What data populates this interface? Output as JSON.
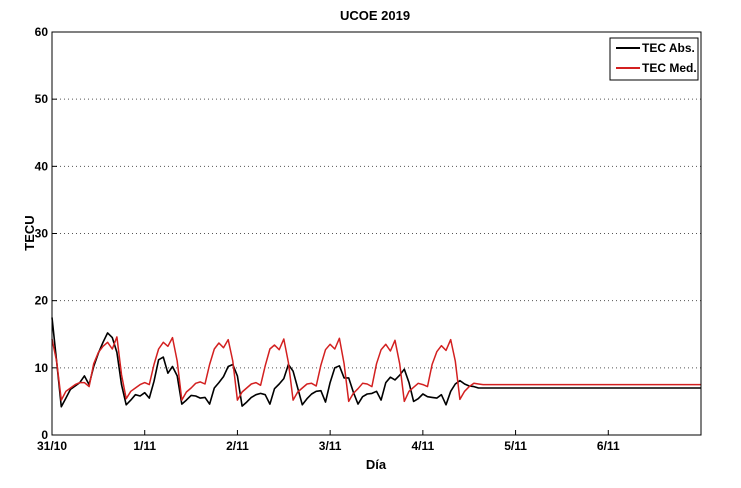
{
  "chart_data": {
    "type": "line",
    "title": "UCOE 2019",
    "xlabel": "Día",
    "ylabel": "TECU",
    "ylim": [
      0,
      60
    ],
    "yticks": [
      0,
      10,
      20,
      30,
      40,
      50,
      60
    ],
    "xlim": [
      0,
      7
    ],
    "xtick_labels": [
      "31/10",
      "1/11",
      "2/11",
      "3/11",
      "4/11",
      "5/11",
      "6/11"
    ],
    "grid": "horizontal dotted",
    "legend_position": "top-right",
    "series": [
      {
        "name": "TEC Abs.",
        "color": "#000000",
        "x": [
          0,
          0.05,
          0.1,
          0.15,
          0.2,
          0.25,
          0.3,
          0.35,
          0.4,
          0.45,
          0.5,
          0.55,
          0.6,
          0.65,
          0.7,
          0.75,
          0.8,
          0.85,
          0.9,
          0.95,
          1.0,
          1.05,
          1.1,
          1.15,
          1.2,
          1.25,
          1.3,
          1.35,
          1.4,
          1.45,
          1.5,
          1.55,
          1.6,
          1.65,
          1.7,
          1.75,
          1.8,
          1.85,
          1.9,
          1.95,
          2.0,
          2.05,
          2.1,
          2.15,
          2.2,
          2.25,
          2.3,
          2.35,
          2.4,
          2.45,
          2.5,
          2.55,
          2.6,
          2.65,
          2.7,
          2.75,
          2.8,
          2.85,
          2.9,
          2.95,
          3.0,
          3.05,
          3.1,
          3.15,
          3.2,
          3.25,
          3.3,
          3.35,
          3.4,
          3.45,
          3.5,
          3.55,
          3.6,
          3.65,
          3.7,
          3.75,
          3.8,
          3.85,
          3.9,
          3.95,
          4.0,
          4.05,
          4.1,
          4.15,
          4.2,
          4.25,
          4.3,
          4.35,
          4.4,
          4.45,
          4.5,
          4.55,
          4.6,
          4.65,
          4.7,
          4.75,
          4.8,
          4.85,
          4.9,
          4.95,
          5.0,
          5.05,
          5.1,
          5.15,
          5.2,
          5.25,
          5.3,
          5.35,
          5.4,
          5.45,
          5.5,
          5.55,
          5.6,
          5.65,
          5.7,
          5.75,
          5.8,
          5.85,
          5.9,
          5.95,
          6.0,
          6.05,
          6.1,
          6.15,
          6.2,
          6.25,
          6.3,
          6.35,
          6.4,
          6.45,
          6.5,
          6.55,
          6.6,
          6.65,
          6.7,
          6.75,
          6.8,
          6.85,
          6.9,
          6.95,
          7.0
        ],
        "values": [
          17.5,
          11.0,
          4.2,
          5.5,
          6.8,
          7.3,
          7.8,
          8.8,
          7.5,
          10.2,
          12.2,
          13.8,
          15.2,
          14.5,
          12.3,
          7.5,
          4.5,
          5.2,
          6.0,
          5.8,
          6.3,
          5.5,
          8.0,
          11.2,
          11.6,
          9.2,
          10.2,
          8.8,
          4.6,
          5.2,
          5.9,
          5.8,
          5.5,
          5.6,
          4.6,
          7.0,
          7.8,
          8.7,
          10.2,
          10.5,
          8.8,
          4.3,
          4.9,
          5.6,
          6.0,
          6.2,
          6.0,
          4.6,
          6.9,
          7.6,
          8.4,
          10.5,
          9.5,
          7.0,
          4.5,
          5.4,
          6.1,
          6.5,
          6.6,
          4.9,
          7.8,
          10.0,
          10.3,
          8.5,
          8.5,
          6.4,
          4.6,
          5.7,
          6.1,
          6.2,
          6.5,
          5.2,
          7.8,
          8.6,
          8.2,
          8.9,
          9.8,
          7.8,
          5.0,
          5.4,
          6.1,
          5.7,
          5.6,
          5.5,
          6.0,
          4.5,
          6.5,
          7.6,
          8.1,
          7.6,
          7.3,
          7.2,
          7.0,
          7.0,
          7.0,
          7.0,
          7.0,
          7.0,
          7.0,
          7.0,
          7.0,
          7.0,
          7.0,
          7.0,
          7.0,
          7.0,
          7.0,
          7.0,
          7.0,
          7.0,
          7.0,
          7.0,
          7.0,
          7.0,
          7.0,
          7.0,
          7.0,
          7.0,
          7.0,
          7.0,
          7.0,
          7.0,
          7.0,
          7.0,
          7.0,
          7.0,
          7.0,
          7.0,
          7.0,
          7.0,
          7.0,
          7.0,
          7.0,
          7.0,
          7.0,
          7.0,
          7.0,
          7.0,
          7.0,
          7.0,
          7.0
        ]
      },
      {
        "name": "TEC Med.",
        "color": "#d32020",
        "x": [
          0,
          0.05,
          0.1,
          0.15,
          0.2,
          0.25,
          0.3,
          0.35,
          0.4,
          0.45,
          0.5,
          0.55,
          0.6,
          0.65,
          0.7,
          0.75,
          0.8,
          0.85,
          0.9,
          0.95,
          1.0,
          1.05,
          1.1,
          1.15,
          1.2,
          1.25,
          1.3,
          1.35,
          1.4,
          1.45,
          1.5,
          1.55,
          1.6,
          1.65,
          1.7,
          1.75,
          1.8,
          1.85,
          1.9,
          1.95,
          2.0,
          2.05,
          2.1,
          2.15,
          2.2,
          2.25,
          2.3,
          2.35,
          2.4,
          2.45,
          2.5,
          2.55,
          2.6,
          2.65,
          2.7,
          2.75,
          2.8,
          2.85,
          2.9,
          2.95,
          3.0,
          3.05,
          3.1,
          3.15,
          3.2,
          3.25,
          3.3,
          3.35,
          3.4,
          3.45,
          3.5,
          3.55,
          3.6,
          3.65,
          3.7,
          3.75,
          3.8,
          3.85,
          3.9,
          3.95,
          4.0,
          4.05,
          4.1,
          4.15,
          4.2,
          4.25,
          4.3,
          4.35,
          4.4,
          4.45,
          4.5,
          4.55,
          4.6,
          4.65,
          4.7,
          4.75,
          4.8,
          4.85,
          4.9,
          4.95,
          5.0,
          5.05,
          5.1,
          5.15,
          5.2,
          5.25,
          5.3,
          5.35,
          5.4,
          5.45,
          5.5,
          5.55,
          5.6,
          5.65,
          5.7,
          5.75,
          5.8,
          5.85,
          5.9,
          5.95,
          6.0,
          6.05,
          6.1,
          6.15,
          6.2,
          6.25,
          6.3,
          6.35,
          6.4,
          6.45,
          6.5,
          6.55,
          6.6,
          6.65,
          6.7,
          6.75,
          6.8,
          6.85,
          6.9,
          6.95,
          7.0
        ],
        "values": [
          14.3,
          11.0,
          5.2,
          6.5,
          7.0,
          7.5,
          7.8,
          7.8,
          7.2,
          10.6,
          12.3,
          13.2,
          13.8,
          12.8,
          14.6,
          9.0,
          5.4,
          6.5,
          7.0,
          7.5,
          7.8,
          7.5,
          10.5,
          12.8,
          13.8,
          13.2,
          14.5,
          11.0,
          5.2,
          6.4,
          7.0,
          7.7,
          7.9,
          7.6,
          10.5,
          12.8,
          13.7,
          13.0,
          14.2,
          11.0,
          5.2,
          6.4,
          7.0,
          7.6,
          7.8,
          7.4,
          10.3,
          12.8,
          13.4,
          12.7,
          14.3,
          10.8,
          5.2,
          6.4,
          7.0,
          7.6,
          7.7,
          7.3,
          10.4,
          12.7,
          13.5,
          12.8,
          14.4,
          10.6,
          5.0,
          6.2,
          6.9,
          7.7,
          7.6,
          7.2,
          10.6,
          12.7,
          13.5,
          12.5,
          14.1,
          10.6,
          5.0,
          6.5,
          7.1,
          7.7,
          7.5,
          7.2,
          10.5,
          12.4,
          13.3,
          12.6,
          14.2,
          11.0,
          5.3,
          6.5,
          7.2,
          7.7,
          7.6,
          7.5,
          7.5,
          7.5,
          7.5,
          7.5,
          7.5,
          7.5,
          7.5,
          7.5,
          7.5,
          7.5,
          7.5,
          7.5,
          7.5,
          7.5,
          7.5,
          7.5,
          7.5,
          7.5,
          7.5,
          7.5,
          7.5,
          7.5,
          7.5,
          7.5,
          7.5,
          7.5,
          7.5,
          7.5,
          7.5,
          7.5,
          7.5,
          7.5,
          7.5,
          7.5,
          7.5,
          7.5,
          7.5,
          7.5,
          7.5,
          7.5,
          7.5,
          7.5,
          7.5,
          7.5,
          7.5,
          7.5,
          7.5
        ]
      }
    ]
  }
}
